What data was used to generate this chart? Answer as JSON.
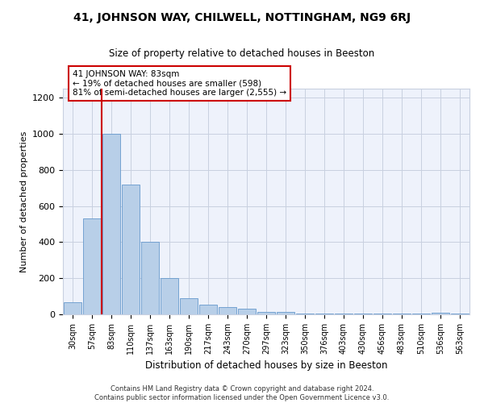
{
  "title_line1": "41, JOHNSON WAY, CHILWELL, NOTTINGHAM, NG9 6RJ",
  "title_line2": "Size of property relative to detached houses in Beeston",
  "xlabel": "Distribution of detached houses by size in Beeston",
  "ylabel": "Number of detached properties",
  "categories": [
    "30sqm",
    "57sqm",
    "83sqm",
    "110sqm",
    "137sqm",
    "163sqm",
    "190sqm",
    "217sqm",
    "243sqm",
    "270sqm",
    "297sqm",
    "323sqm",
    "350sqm",
    "376sqm",
    "403sqm",
    "430sqm",
    "456sqm",
    "483sqm",
    "510sqm",
    "536sqm",
    "563sqm"
  ],
  "values": [
    65,
    530,
    1000,
    720,
    400,
    200,
    90,
    55,
    40,
    30,
    15,
    15,
    5,
    5,
    5,
    5,
    5,
    5,
    5,
    10,
    5
  ],
  "bar_color": "#b8cfe8",
  "bar_edge_color": "#6699cc",
  "vline_x_index": 2,
  "vline_color": "#cc0000",
  "annotation_text": "41 JOHNSON WAY: 83sqm\n← 19% of detached houses are smaller (598)\n81% of semi-detached houses are larger (2,555) →",
  "annotation_box_color": "#ffffff",
  "annotation_box_edge": "#cc0000",
  "ylim": [
    0,
    1250
  ],
  "yticks": [
    0,
    200,
    400,
    600,
    800,
    1000,
    1200
  ],
  "footer_line1": "Contains HM Land Registry data © Crown copyright and database right 2024.",
  "footer_line2": "Contains public sector information licensed under the Open Government Licence v3.0.",
  "bg_color": "#eef2fb",
  "grid_color": "#c8d0e0"
}
